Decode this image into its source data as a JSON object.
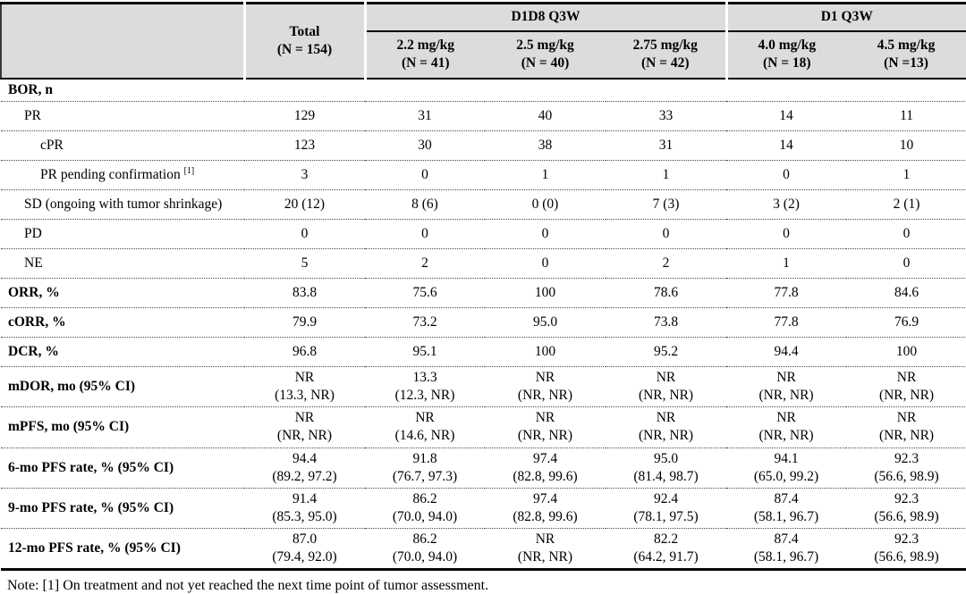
{
  "colors": {
    "header_bg": "#dcdcdc"
  },
  "table": {
    "header": {
      "total": {
        "line1": "Total",
        "line2": "(N = 154)"
      },
      "groups": [
        {
          "label": "D1D8 Q3W",
          "cols": [
            {
              "line1": "2.2 mg/kg",
              "line2": "(N = 41)"
            },
            {
              "line1": "2.5 mg/kg",
              "line2": "(N = 40)"
            },
            {
              "line1": "2.75 mg/kg",
              "line2": "(N = 42)"
            }
          ]
        },
        {
          "label": "D1 Q3W",
          "cols": [
            {
              "line1": "4.0 mg/kg",
              "line2": "(N = 18)"
            },
            {
              "line1": "4.5 mg/kg",
              "line2": "(N =13)"
            }
          ]
        }
      ]
    },
    "rows": [
      {
        "label": "BOR, n",
        "bold": true,
        "indent": 0,
        "section": true,
        "values": [
          "",
          "",
          "",
          "",
          "",
          ""
        ]
      },
      {
        "label": "PR",
        "indent": 1,
        "values": [
          "129",
          "31",
          "40",
          "33",
          "14",
          "11"
        ]
      },
      {
        "label": "cPR",
        "indent": 2,
        "values": [
          "123",
          "30",
          "38",
          "31",
          "14",
          "10"
        ]
      },
      {
        "label": "PR pending confirmation ",
        "sup": "[1]",
        "indent": 2,
        "values": [
          "3",
          "0",
          "1",
          "1",
          "0",
          "1"
        ]
      },
      {
        "label": "SD (ongoing with tumor shrinkage)",
        "indent": 1,
        "values": [
          "20 (12)",
          "8 (6)",
          "0 (0)",
          "7 (3)",
          "3 (2)",
          "2 (1)"
        ]
      },
      {
        "label": "PD",
        "indent": 1,
        "values": [
          "0",
          "0",
          "0",
          "0",
          "0",
          "0"
        ]
      },
      {
        "label": "NE",
        "indent": 1,
        "values": [
          "5",
          "2",
          "0",
          "2",
          "1",
          "0"
        ]
      },
      {
        "label": "ORR, %",
        "bold": true,
        "indent": 0,
        "values": [
          "83.8",
          "75.6",
          "100",
          "78.6",
          "77.8",
          "84.6"
        ]
      },
      {
        "label": "cORR, %",
        "bold": true,
        "indent": 0,
        "values": [
          "79.9",
          "73.2",
          "95.0",
          "73.8",
          "77.8",
          "76.9"
        ]
      },
      {
        "label": "DCR, %",
        "bold": true,
        "indent": 0,
        "values": [
          "96.8",
          "95.1",
          "100",
          "95.2",
          "94.4",
          "100"
        ]
      },
      {
        "label": "mDOR, mo (95% CI)",
        "bold": true,
        "indent": 0,
        "values": [
          [
            "NR",
            "(13.3, NR)"
          ],
          [
            "13.3",
            "(12.3, NR)"
          ],
          [
            "NR",
            "(NR, NR)"
          ],
          [
            "NR",
            "(NR, NR)"
          ],
          [
            "NR",
            "(NR, NR)"
          ],
          [
            "NR",
            "(NR, NR)"
          ]
        ]
      },
      {
        "label": "mPFS, mo (95% CI)",
        "bold": true,
        "indent": 0,
        "values": [
          [
            "NR",
            "(NR, NR)"
          ],
          [
            "NR",
            "(14.6, NR)"
          ],
          [
            "NR",
            "(NR, NR)"
          ],
          [
            "NR",
            "(NR, NR)"
          ],
          [
            "NR",
            "(NR, NR)"
          ],
          [
            "NR",
            "(NR, NR)"
          ]
        ]
      },
      {
        "label": "6-mo PFS rate, % (95% CI)",
        "bold": true,
        "indent": 0,
        "values": [
          [
            "94.4",
            "(89.2, 97.2)"
          ],
          [
            "91.8",
            "(76.7, 97.3)"
          ],
          [
            "97.4",
            "(82.8, 99.6)"
          ],
          [
            "95.0",
            "(81.4, 98.7)"
          ],
          [
            "94.1",
            "(65.0, 99.2)"
          ],
          [
            "92.3",
            "(56.6, 98.9)"
          ]
        ]
      },
      {
        "label": "9-mo PFS rate, % (95% CI)",
        "bold": true,
        "indent": 0,
        "values": [
          [
            "91.4",
            "(85.3, 95.0)"
          ],
          [
            "86.2",
            "(70.0, 94.0)"
          ],
          [
            "97.4",
            "(82.8, 99.6)"
          ],
          [
            "92.4",
            "(78.1, 97.5)"
          ],
          [
            "87.4",
            "(58.1, 96.7)"
          ],
          [
            "92.3",
            "(56.6, 98.9)"
          ]
        ]
      },
      {
        "label": "12-mo PFS rate, % (95% CI)",
        "bold": true,
        "indent": 0,
        "values": [
          [
            "87.0",
            "(79.4, 92.0)"
          ],
          [
            "86.2",
            "(70.0, 94.0)"
          ],
          [
            "NR",
            "(NR, NR)"
          ],
          [
            "82.2",
            "(64.2, 91.7)"
          ],
          [
            "87.4",
            "(58.1, 96.7)"
          ],
          [
            "92.3",
            "(56.6, 98.9)"
          ]
        ]
      }
    ]
  },
  "note": "Note: [1] On treatment and not yet reached the next time point of tumor assessment."
}
